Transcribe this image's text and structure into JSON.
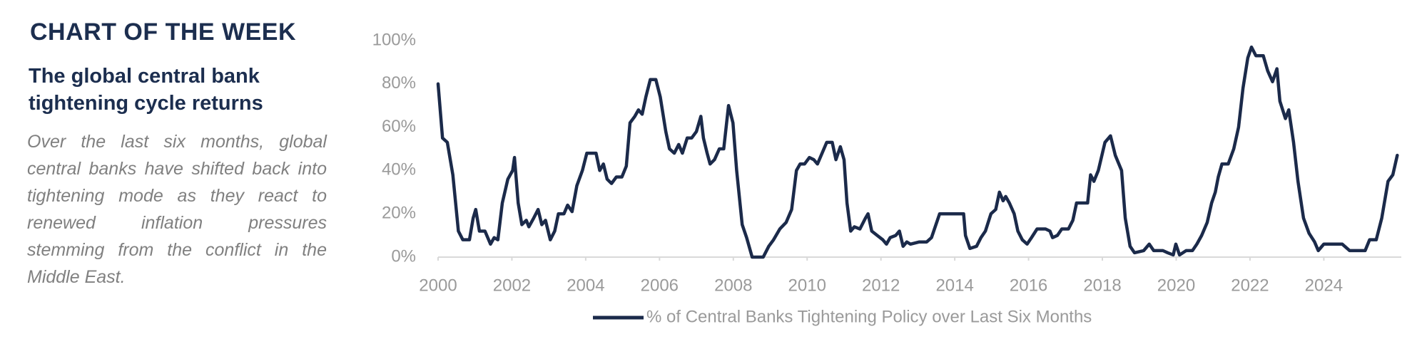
{
  "panel": {
    "kicker": "CHART OF THE WEEK",
    "headline": "The global central bank tightening cycle returns",
    "body": "Over the last six months, global central banks have shifted back into tightening mode as they react to renewed inflation pressures stemming from the conflict in the Middle East."
  },
  "chart_data": {
    "type": "line",
    "x": [
      2000.0,
      2000.12,
      2000.25,
      2000.4,
      2000.55,
      2000.67,
      2000.85,
      2000.95,
      2001.02,
      2001.12,
      2001.27,
      2001.42,
      2001.52,
      2001.62,
      2001.74,
      2001.89,
      2002.02,
      2002.07,
      2002.17,
      2002.27,
      2002.39,
      2002.46,
      2002.59,
      2002.71,
      2002.81,
      2002.91,
      2003.04,
      2003.16,
      2003.26,
      2003.41,
      2003.51,
      2003.63,
      2003.76,
      2003.91,
      2004.03,
      2004.28,
      2004.38,
      2004.48,
      2004.58,
      2004.7,
      2004.83,
      2004.98,
      2005.1,
      2005.2,
      2005.33,
      2005.43,
      2005.53,
      2005.63,
      2005.75,
      2005.9,
      2006.02,
      2006.17,
      2006.27,
      2006.4,
      2006.52,
      2006.62,
      2006.75,
      2006.87,
      2007.0,
      2007.12,
      2007.19,
      2007.29,
      2007.37,
      2007.49,
      2007.62,
      2007.74,
      2007.87,
      2007.99,
      2008.09,
      2008.24,
      2008.36,
      2008.51,
      2008.81,
      2008.96,
      2009.09,
      2009.26,
      2009.43,
      2009.58,
      2009.71,
      2009.81,
      2009.93,
      2010.06,
      2010.18,
      2010.28,
      2010.38,
      2010.53,
      2010.68,
      2010.78,
      2010.9,
      2011.0,
      2011.08,
      2011.18,
      2011.28,
      2011.43,
      2011.58,
      2011.65,
      2011.75,
      2011.9,
      2012.05,
      2012.15,
      2012.25,
      2012.4,
      2012.5,
      2012.6,
      2012.7,
      2012.8,
      2013.04,
      2013.24,
      2013.37,
      2013.49,
      2013.59,
      2014.16,
      2014.24,
      2014.29,
      2014.41,
      2014.59,
      2014.71,
      2014.83,
      2014.98,
      2015.11,
      2015.21,
      2015.31,
      2015.38,
      2015.48,
      2015.61,
      2015.71,
      2015.83,
      2015.96,
      2016.08,
      2016.23,
      2016.46,
      2016.58,
      2016.65,
      2016.78,
      2016.9,
      2017.08,
      2017.2,
      2017.3,
      2017.48,
      2017.6,
      2017.68,
      2017.77,
      2017.89,
      2018.07,
      2018.22,
      2018.35,
      2018.52,
      2018.62,
      2018.75,
      2018.87,
      2019.12,
      2019.27,
      2019.39,
      2019.64,
      2019.77,
      2019.92,
      2019.99,
      2020.09,
      2020.27,
      2020.44,
      2020.56,
      2020.69,
      2020.84,
      2020.96,
      2021.06,
      2021.14,
      2021.24,
      2021.41,
      2021.56,
      2021.69,
      2021.81,
      2021.94,
      2022.04,
      2022.16,
      2022.36,
      2022.48,
      2022.61,
      2022.73,
      2022.81,
      2022.96,
      2023.05,
      2023.18,
      2023.3,
      2023.45,
      2023.6,
      2023.75,
      2023.85,
      2024.0,
      2024.3,
      2024.5,
      2024.7,
      2024.94,
      2025.12,
      2025.24,
      2025.42,
      2025.57,
      2025.74,
      2025.87,
      2025.99
    ],
    "series": [
      {
        "name": "% of Central Banks Tightening Policy over Last Six Months",
        "color": "#1b2a4a",
        "values": [
          80,
          55,
          53,
          38,
          12,
          8,
          8,
          18,
          22,
          12,
          12,
          6,
          9,
          8,
          25,
          36,
          40,
          46,
          25,
          15,
          17,
          14,
          18,
          22,
          15,
          17,
          8,
          12,
          20,
          20,
          24,
          21,
          33,
          40,
          48,
          48,
          40,
          43,
          36,
          34,
          37,
          37,
          42,
          62,
          65,
          68,
          66,
          74,
          82,
          82,
          74,
          58,
          50,
          48,
          52,
          48,
          55,
          55,
          58,
          65,
          55,
          48,
          43,
          45,
          50,
          50,
          70,
          62,
          40,
          15,
          9,
          0,
          0,
          5,
          8,
          13,
          16,
          22,
          40,
          43,
          43,
          46,
          45,
          43,
          47,
          53,
          53,
          45,
          51,
          45,
          25,
          12,
          14,
          13,
          18,
          20,
          12,
          10,
          8,
          6,
          9,
          10,
          12,
          5,
          7,
          6,
          7,
          7,
          9,
          15,
          20,
          20,
          20,
          10,
          4,
          5,
          9,
          12,
          20,
          22,
          30,
          26,
          28,
          25,
          20,
          12,
          8,
          6,
          9,
          13,
          13,
          12,
          9,
          10,
          13,
          13,
          17,
          25,
          25,
          25,
          38,
          35,
          40,
          53,
          56,
          47,
          40,
          18,
          5,
          2,
          3,
          6,
          3,
          3,
          2,
          1,
          6,
          1,
          3,
          3,
          6,
          10,
          16,
          25,
          30,
          37,
          43,
          43,
          50,
          60,
          78,
          92,
          97,
          93,
          93,
          86,
          81,
          87,
          72,
          64,
          68,
          53,
          35,
          18,
          11,
          7,
          3,
          6,
          6,
          6,
          3,
          3,
          3,
          8,
          8,
          18,
          35,
          38,
          47
        ]
      }
    ],
    "xlim": [
      2000,
      2026.1
    ],
    "xticks": [
      2000,
      2002,
      2004,
      2006,
      2008,
      2010,
      2012,
      2014,
      2016,
      2018,
      2020,
      2022,
      2024
    ],
    "ylim": [
      0,
      100
    ],
    "yticks": [
      {
        "value": 0,
        "label": "0%"
      },
      {
        "value": 20,
        "label": "20%"
      },
      {
        "value": 40,
        "label": "40%"
      },
      {
        "value": 60,
        "label": "60%"
      },
      {
        "value": 80,
        "label": "80%"
      },
      {
        "value": 100,
        "label": "100%"
      }
    ],
    "grid": false
  }
}
